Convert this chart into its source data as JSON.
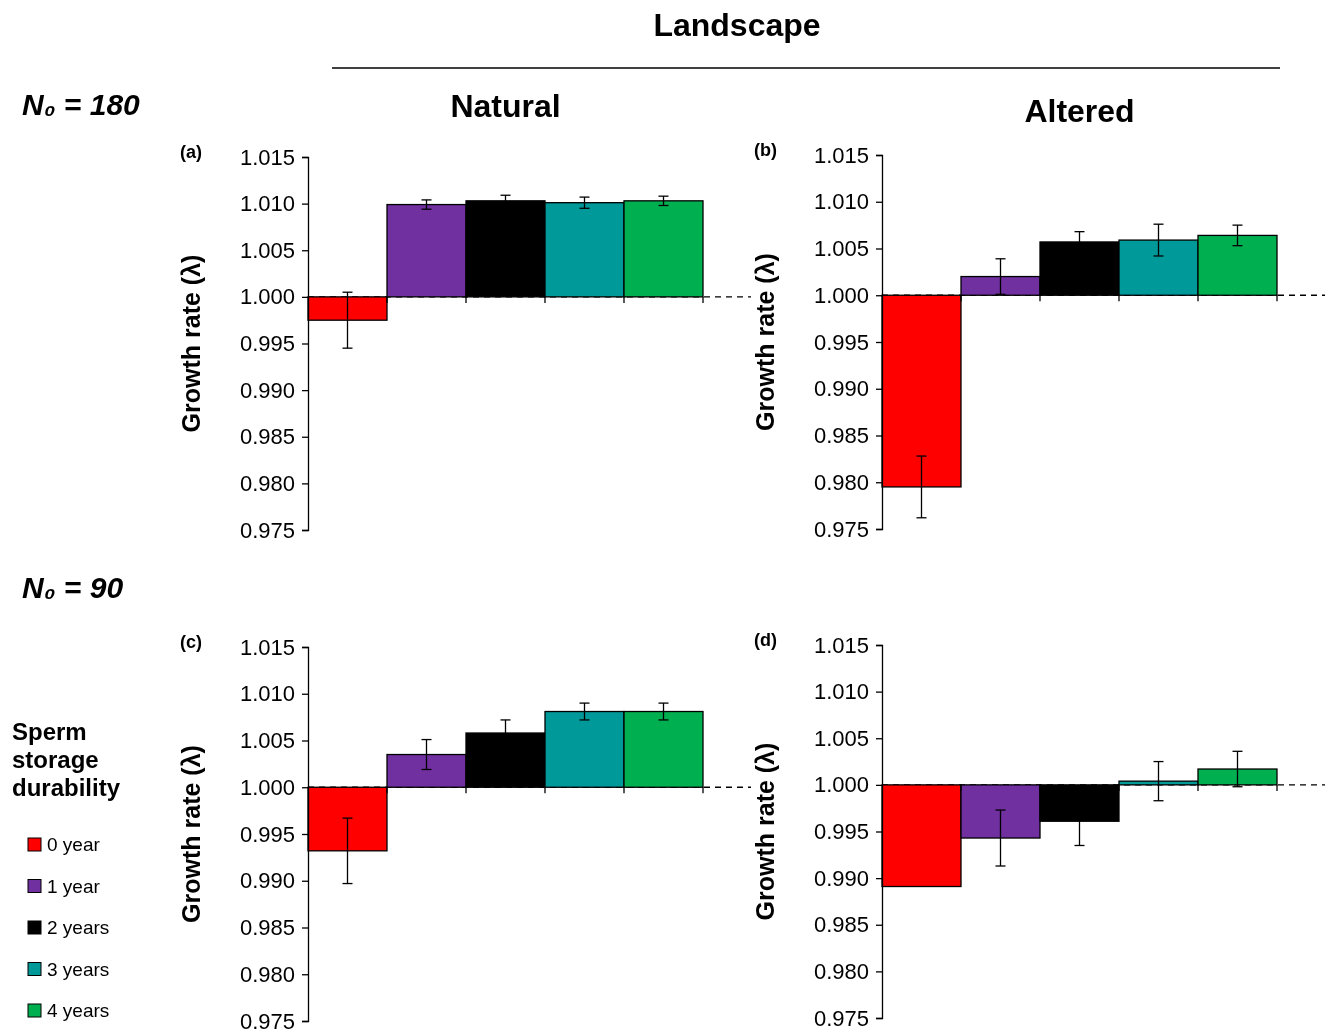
{
  "chart_data": [
    {
      "type": "bar",
      "title": "Natural",
      "ylabel": "Growth rate (λ)",
      "annotations": [
        "(a)",
        "N₀ = 180",
        "Landscape"
      ],
      "categories": [
        null
      ],
      "ylim": [
        0.975,
        1.015
      ],
      "yticks": [
        {
          "value": 0.975,
          "label": "0.975"
        },
        {
          "value": 0.98,
          "label": "0.980"
        },
        {
          "value": 0.985,
          "label": "0.985"
        },
        {
          "value": 0.99,
          "label": "0.990"
        },
        {
          "value": 0.995,
          "label": "0.995"
        },
        {
          "value": 1.0,
          "label": "1.000"
        },
        {
          "value": 1.005,
          "label": "1.005"
        },
        {
          "value": 1.01,
          "label": "1.010"
        },
        {
          "value": 1.015,
          "label": "1.015"
        }
      ],
      "ref_lines": [
        {
          "axis": "y",
          "value": 1.0,
          "line_style": "dashed"
        }
      ],
      "legend": false,
      "series": [
        {
          "color": "#ff0000",
          "base": [
            1.0
          ],
          "values": [
            -0.0025
          ],
          "errors": [
            0.003
          ]
        },
        {
          "color": "#7030a0",
          "base": [
            1.0
          ],
          "values": [
            0.0099
          ],
          "errors": [
            0.0005
          ]
        },
        {
          "color": "#000000",
          "base": [
            1.0
          ],
          "values": [
            0.0103
          ],
          "errors": [
            0.0006
          ]
        },
        {
          "color": "#009999",
          "base": [
            1.0
          ],
          "values": [
            0.0101
          ],
          "errors": [
            0.0006
          ]
        },
        {
          "color": "#00b050",
          "base": [
            1.0
          ],
          "values": [
            0.0103
          ],
          "errors": [
            0.0005
          ]
        }
      ]
    },
    {
      "type": "bar",
      "title": "Altered",
      "ylabel": "Growth rate (λ)",
      "annotations": [
        "(b)"
      ],
      "categories": [
        null
      ],
      "ylim": [
        0.975,
        1.015
      ],
      "yticks": [
        {
          "value": 0.975,
          "label": "0.975"
        },
        {
          "value": 0.98,
          "label": "0.980"
        },
        {
          "value": 0.985,
          "label": "0.985"
        },
        {
          "value": 0.99,
          "label": "0.990"
        },
        {
          "value": 0.995,
          "label": "0.995"
        },
        {
          "value": 1.0,
          "label": "1.000"
        },
        {
          "value": 1.005,
          "label": "1.005"
        },
        {
          "value": 1.01,
          "label": "1.010"
        },
        {
          "value": 1.015,
          "label": "1.015"
        }
      ],
      "ref_lines": [
        {
          "axis": "y",
          "value": 1.0,
          "line_style": "dashed"
        }
      ],
      "legend": false,
      "series": [
        {
          "color": "#ff0000",
          "base": [
            1.0
          ],
          "values": [
            -0.0205
          ],
          "errors": [
            0.0033
          ]
        },
        {
          "color": "#7030a0",
          "base": [
            1.0
          ],
          "values": [
            0.002
          ],
          "errors": [
            0.0019
          ]
        },
        {
          "color": "#000000",
          "base": [
            1.0
          ],
          "values": [
            0.0057
          ],
          "errors": [
            0.0011
          ]
        },
        {
          "color": "#009999",
          "base": [
            1.0
          ],
          "values": [
            0.0059
          ],
          "errors": [
            0.0017
          ]
        },
        {
          "color": "#00b050",
          "base": [
            1.0
          ],
          "values": [
            0.0064
          ],
          "errors": [
            0.0011
          ]
        }
      ]
    },
    {
      "type": "bar",
      "ylabel": "Growth rate (λ)",
      "legend_title": "Sperm storage durability",
      "annotations": [
        "(c)",
        "N₀ = 90"
      ],
      "categories": [
        null
      ],
      "ylim": [
        0.975,
        1.015
      ],
      "yticks": [
        {
          "value": 0.975,
          "label": "0.975"
        },
        {
          "value": 0.98,
          "label": "0.980"
        },
        {
          "value": 0.985,
          "label": "0.985"
        },
        {
          "value": 0.99,
          "label": "0.990"
        },
        {
          "value": 0.995,
          "label": "0.995"
        },
        {
          "value": 1.0,
          "label": "1.000"
        },
        {
          "value": 1.005,
          "label": "1.005"
        },
        {
          "value": 1.01,
          "label": "1.010"
        },
        {
          "value": 1.015,
          "label": "1.015"
        }
      ],
      "ref_lines": [
        {
          "axis": "y",
          "value": 1.0,
          "line_style": "dashed"
        }
      ],
      "legend": "left",
      "series": [
        {
          "name": "0 year",
          "color": "#ff0000",
          "base": [
            1.0
          ],
          "values": [
            -0.0068
          ],
          "errors": [
            0.0035
          ]
        },
        {
          "name": "1 year",
          "color": "#7030a0",
          "base": [
            1.0
          ],
          "values": [
            0.0035
          ],
          "errors": [
            0.0016
          ]
        },
        {
          "name": "2 years",
          "color": "#000000",
          "base": [
            1.0
          ],
          "values": [
            0.0058
          ],
          "errors": [
            0.0014
          ]
        },
        {
          "name": "3 years",
          "color": "#009999",
          "base": [
            1.0
          ],
          "values": [
            0.0081
          ],
          "errors": [
            0.0009
          ]
        },
        {
          "name": "4 years",
          "color": "#00b050",
          "base": [
            1.0
          ],
          "values": [
            0.0081
          ],
          "errors": [
            0.0009
          ]
        }
      ]
    },
    {
      "type": "bar",
      "ylabel": "Growth rate (λ)",
      "annotations": [
        "(d)"
      ],
      "categories": [
        null
      ],
      "ylim": [
        0.975,
        1.015
      ],
      "yticks": [
        {
          "value": 0.975,
          "label": "0.975"
        },
        {
          "value": 0.98,
          "label": "0.980"
        },
        {
          "value": 0.985,
          "label": "0.985"
        },
        {
          "value": 0.99,
          "label": "0.990"
        },
        {
          "value": 0.995,
          "label": "0.995"
        },
        {
          "value": 1.0,
          "label": "1.000"
        },
        {
          "value": 1.005,
          "label": "1.005"
        },
        {
          "value": 1.01,
          "label": "1.010"
        },
        {
          "value": 1.015,
          "label": "1.015"
        }
      ],
      "ref_lines": [
        {
          "axis": "y",
          "value": 1.0,
          "line_style": "dashed"
        }
      ],
      "legend": false,
      "series": [
        {
          "color": "#ff0000",
          "base": [
            1.0
          ],
          "values": [
            -0.0109
          ],
          "errors": [
            null
          ]
        },
        {
          "color": "#7030a0",
          "base": [
            1.0
          ],
          "values": [
            -0.0057
          ],
          "errors": [
            0.003
          ]
        },
        {
          "color": "#000000",
          "base": [
            1.0
          ],
          "values": [
            -0.0039
          ],
          "errors": [
            0.0026
          ]
        },
        {
          "color": "#009999",
          "base": [
            1.0
          ],
          "values": [
            0.0004
          ],
          "errors": [
            0.0021
          ]
        },
        {
          "color": "#00b050",
          "base": [
            1.0
          ],
          "values": [
            0.0017
          ],
          "errors": [
            0.0019
          ]
        }
      ]
    }
  ]
}
